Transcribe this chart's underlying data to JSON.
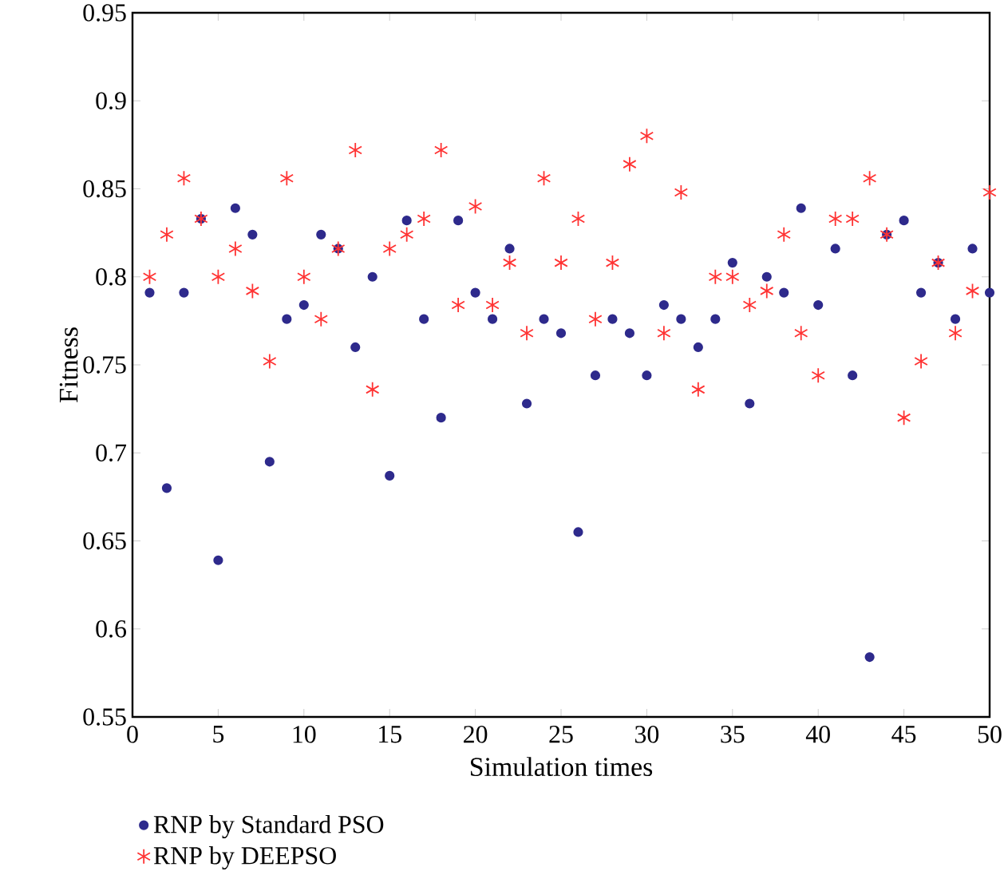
{
  "chart_data": {
    "type": "scatter",
    "xlabel": "Simulation times",
    "ylabel": "Fitness",
    "xlim": [
      0,
      50
    ],
    "ylim": [
      0.55,
      0.95
    ],
    "xticks": [
      0,
      5,
      10,
      15,
      20,
      25,
      30,
      35,
      40,
      45,
      50
    ],
    "yticks": [
      0.55,
      0.6,
      0.65,
      0.7,
      0.75,
      0.8,
      0.85,
      0.9,
      0.95
    ],
    "x": [
      1,
      2,
      3,
      4,
      5,
      6,
      7,
      8,
      9,
      10,
      11,
      12,
      13,
      14,
      15,
      16,
      17,
      18,
      19,
      20,
      21,
      22,
      23,
      24,
      25,
      26,
      27,
      28,
      29,
      30,
      31,
      32,
      33,
      34,
      35,
      36,
      37,
      38,
      39,
      40,
      41,
      42,
      43,
      44,
      45,
      46,
      47,
      48,
      49,
      50
    ],
    "legend": "bottom",
    "grid": false,
    "series": [
      {
        "name": "RNP by Standard PSO",
        "color": "#2e2a8c",
        "marker": "circle",
        "values": [
          0.791,
          0.68,
          0.791,
          0.833,
          0.639,
          0.839,
          0.824,
          0.695,
          0.776,
          0.784,
          0.824,
          0.816,
          0.76,
          0.8,
          0.687,
          0.832,
          0.776,
          0.72,
          0.832,
          0.791,
          0.776,
          0.816,
          0.728,
          0.776,
          0.768,
          0.655,
          0.744,
          0.776,
          0.768,
          0.744,
          0.784,
          0.776,
          0.76,
          0.776,
          0.808,
          0.728,
          0.8,
          0.791,
          0.839,
          0.784,
          0.816,
          0.744,
          0.584,
          0.824,
          0.832,
          0.791,
          0.808,
          0.776,
          0.816,
          0.791
        ]
      },
      {
        "name": "RNP by DEEPSO",
        "color": "#ff3333",
        "marker": "cross",
        "values": [
          0.8,
          0.824,
          0.856,
          0.833,
          0.8,
          0.816,
          0.792,
          0.752,
          0.856,
          0.8,
          0.776,
          0.816,
          0.872,
          0.736,
          0.816,
          0.824,
          0.833,
          0.872,
          0.784,
          0.84,
          0.784,
          0.808,
          0.768,
          0.856,
          0.808,
          0.833,
          0.776,
          0.808,
          0.864,
          0.88,
          0.768,
          0.848,
          0.736,
          0.8,
          0.8,
          0.784,
          0.792,
          0.824,
          0.768,
          0.744,
          0.833,
          0.833,
          0.856,
          0.824,
          0.72,
          0.752,
          0.808,
          0.768,
          0.792,
          0.848
        ]
      }
    ]
  }
}
